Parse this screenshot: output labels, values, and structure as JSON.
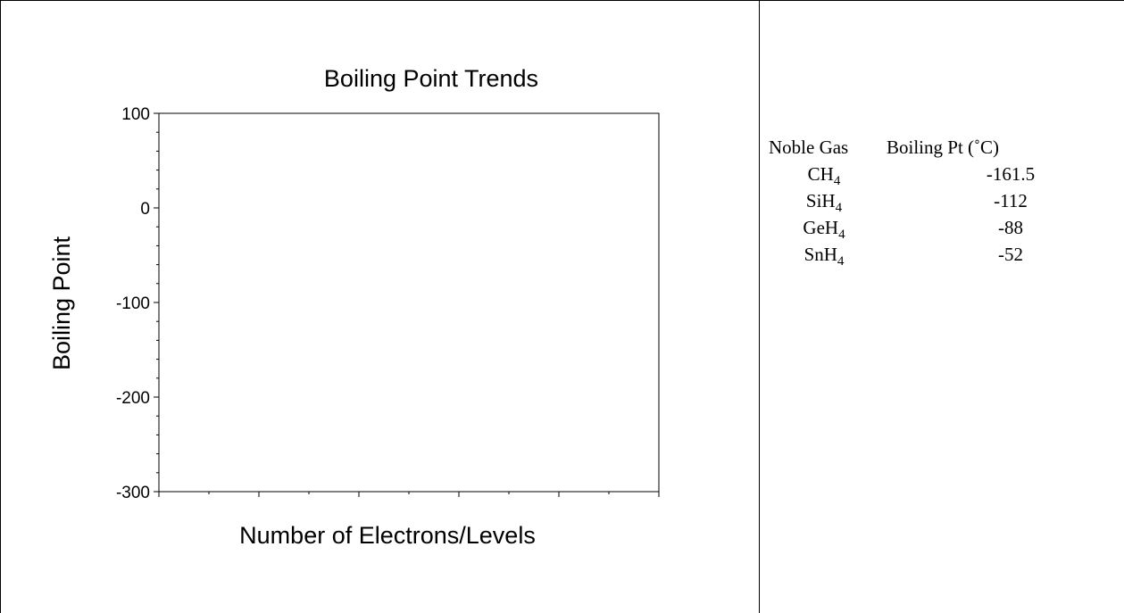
{
  "chart_data": {
    "type": "scatter",
    "title": "Boiling Point Trends",
    "xlabel": "Number of Electrons/Levels",
    "ylabel": "Boiling Point",
    "ylim": [
      -300,
      100
    ],
    "yticks": [
      "100",
      "0",
      "-100",
      "-200",
      "-300"
    ],
    "ytick_values": [
      100,
      0,
      -100,
      -200,
      -300
    ],
    "grid": false,
    "series": []
  },
  "table": {
    "headers": [
      "Noble Gas",
      "Boiling Pt (˚C)"
    ],
    "rows": [
      {
        "base": "CH",
        "sub": "4",
        "bp": "-161.5"
      },
      {
        "base": "SiH",
        "sub": "4",
        "bp": "-112"
      },
      {
        "base": "GeH",
        "sub": "4",
        "bp": "-88"
      },
      {
        "base": "SnH",
        "sub": "4",
        "bp": "-52"
      }
    ]
  }
}
